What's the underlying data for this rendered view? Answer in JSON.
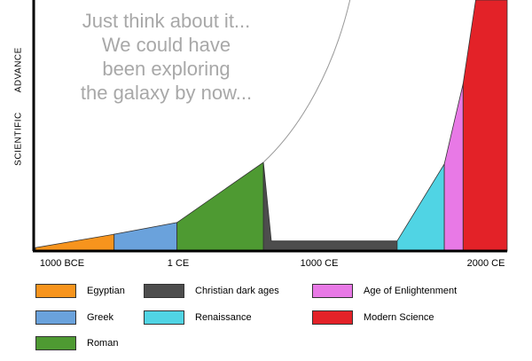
{
  "chart_data": {
    "type": "area",
    "ylabel_parts": [
      "SCIENTIFIC",
      "ADVANCE"
    ],
    "x_ticks": [
      "1000 BCE",
      "1 CE",
      "1000 CE",
      "2000 CE"
    ],
    "annotation_lines": [
      "Just think about it...",
      "We could have",
      "been exploring",
      "the galaxy by now..."
    ],
    "series": [
      {
        "name": "Egyptian",
        "color": "#f7941d",
        "points": [
          [
            -1000,
            2
          ],
          [
            -500,
            10
          ]
        ]
      },
      {
        "name": "Greek",
        "color": "#6aa2dc",
        "points": [
          [
            -500,
            10
          ],
          [
            -100,
            17
          ]
        ]
      },
      {
        "name": "Roman",
        "color": "#4e9a32",
        "points": [
          [
            -100,
            17
          ],
          [
            450,
            53
          ]
        ]
      },
      {
        "name": "Christian dark ages",
        "color": "#4d4d4d",
        "points": [
          [
            450,
            53
          ],
          [
            500,
            6
          ],
          [
            1300,
            6
          ]
        ]
      },
      {
        "name": "Renaissance",
        "color": "#50d4e4",
        "points": [
          [
            1300,
            6
          ],
          [
            1600,
            52
          ]
        ]
      },
      {
        "name": "Age of Enlightenment",
        "color": "#e879e6",
        "points": [
          [
            1600,
            52
          ],
          [
            1720,
            100
          ]
        ]
      },
      {
        "name": "Modern Science",
        "color": "#e32228",
        "points": [
          [
            1720,
            100
          ],
          [
            1800,
            150
          ],
          [
            2000,
            150
          ]
        ]
      }
    ],
    "hypothetical_curve": [
      [
        450,
        53
      ],
      [
        700,
        75
      ],
      [
        900,
        110
      ],
      [
        1000,
        150
      ]
    ],
    "xlim": [
      -1000,
      2000
    ],
    "ylim": [
      0,
      150
    ],
    "grid": false,
    "legend_position": "bottom"
  }
}
